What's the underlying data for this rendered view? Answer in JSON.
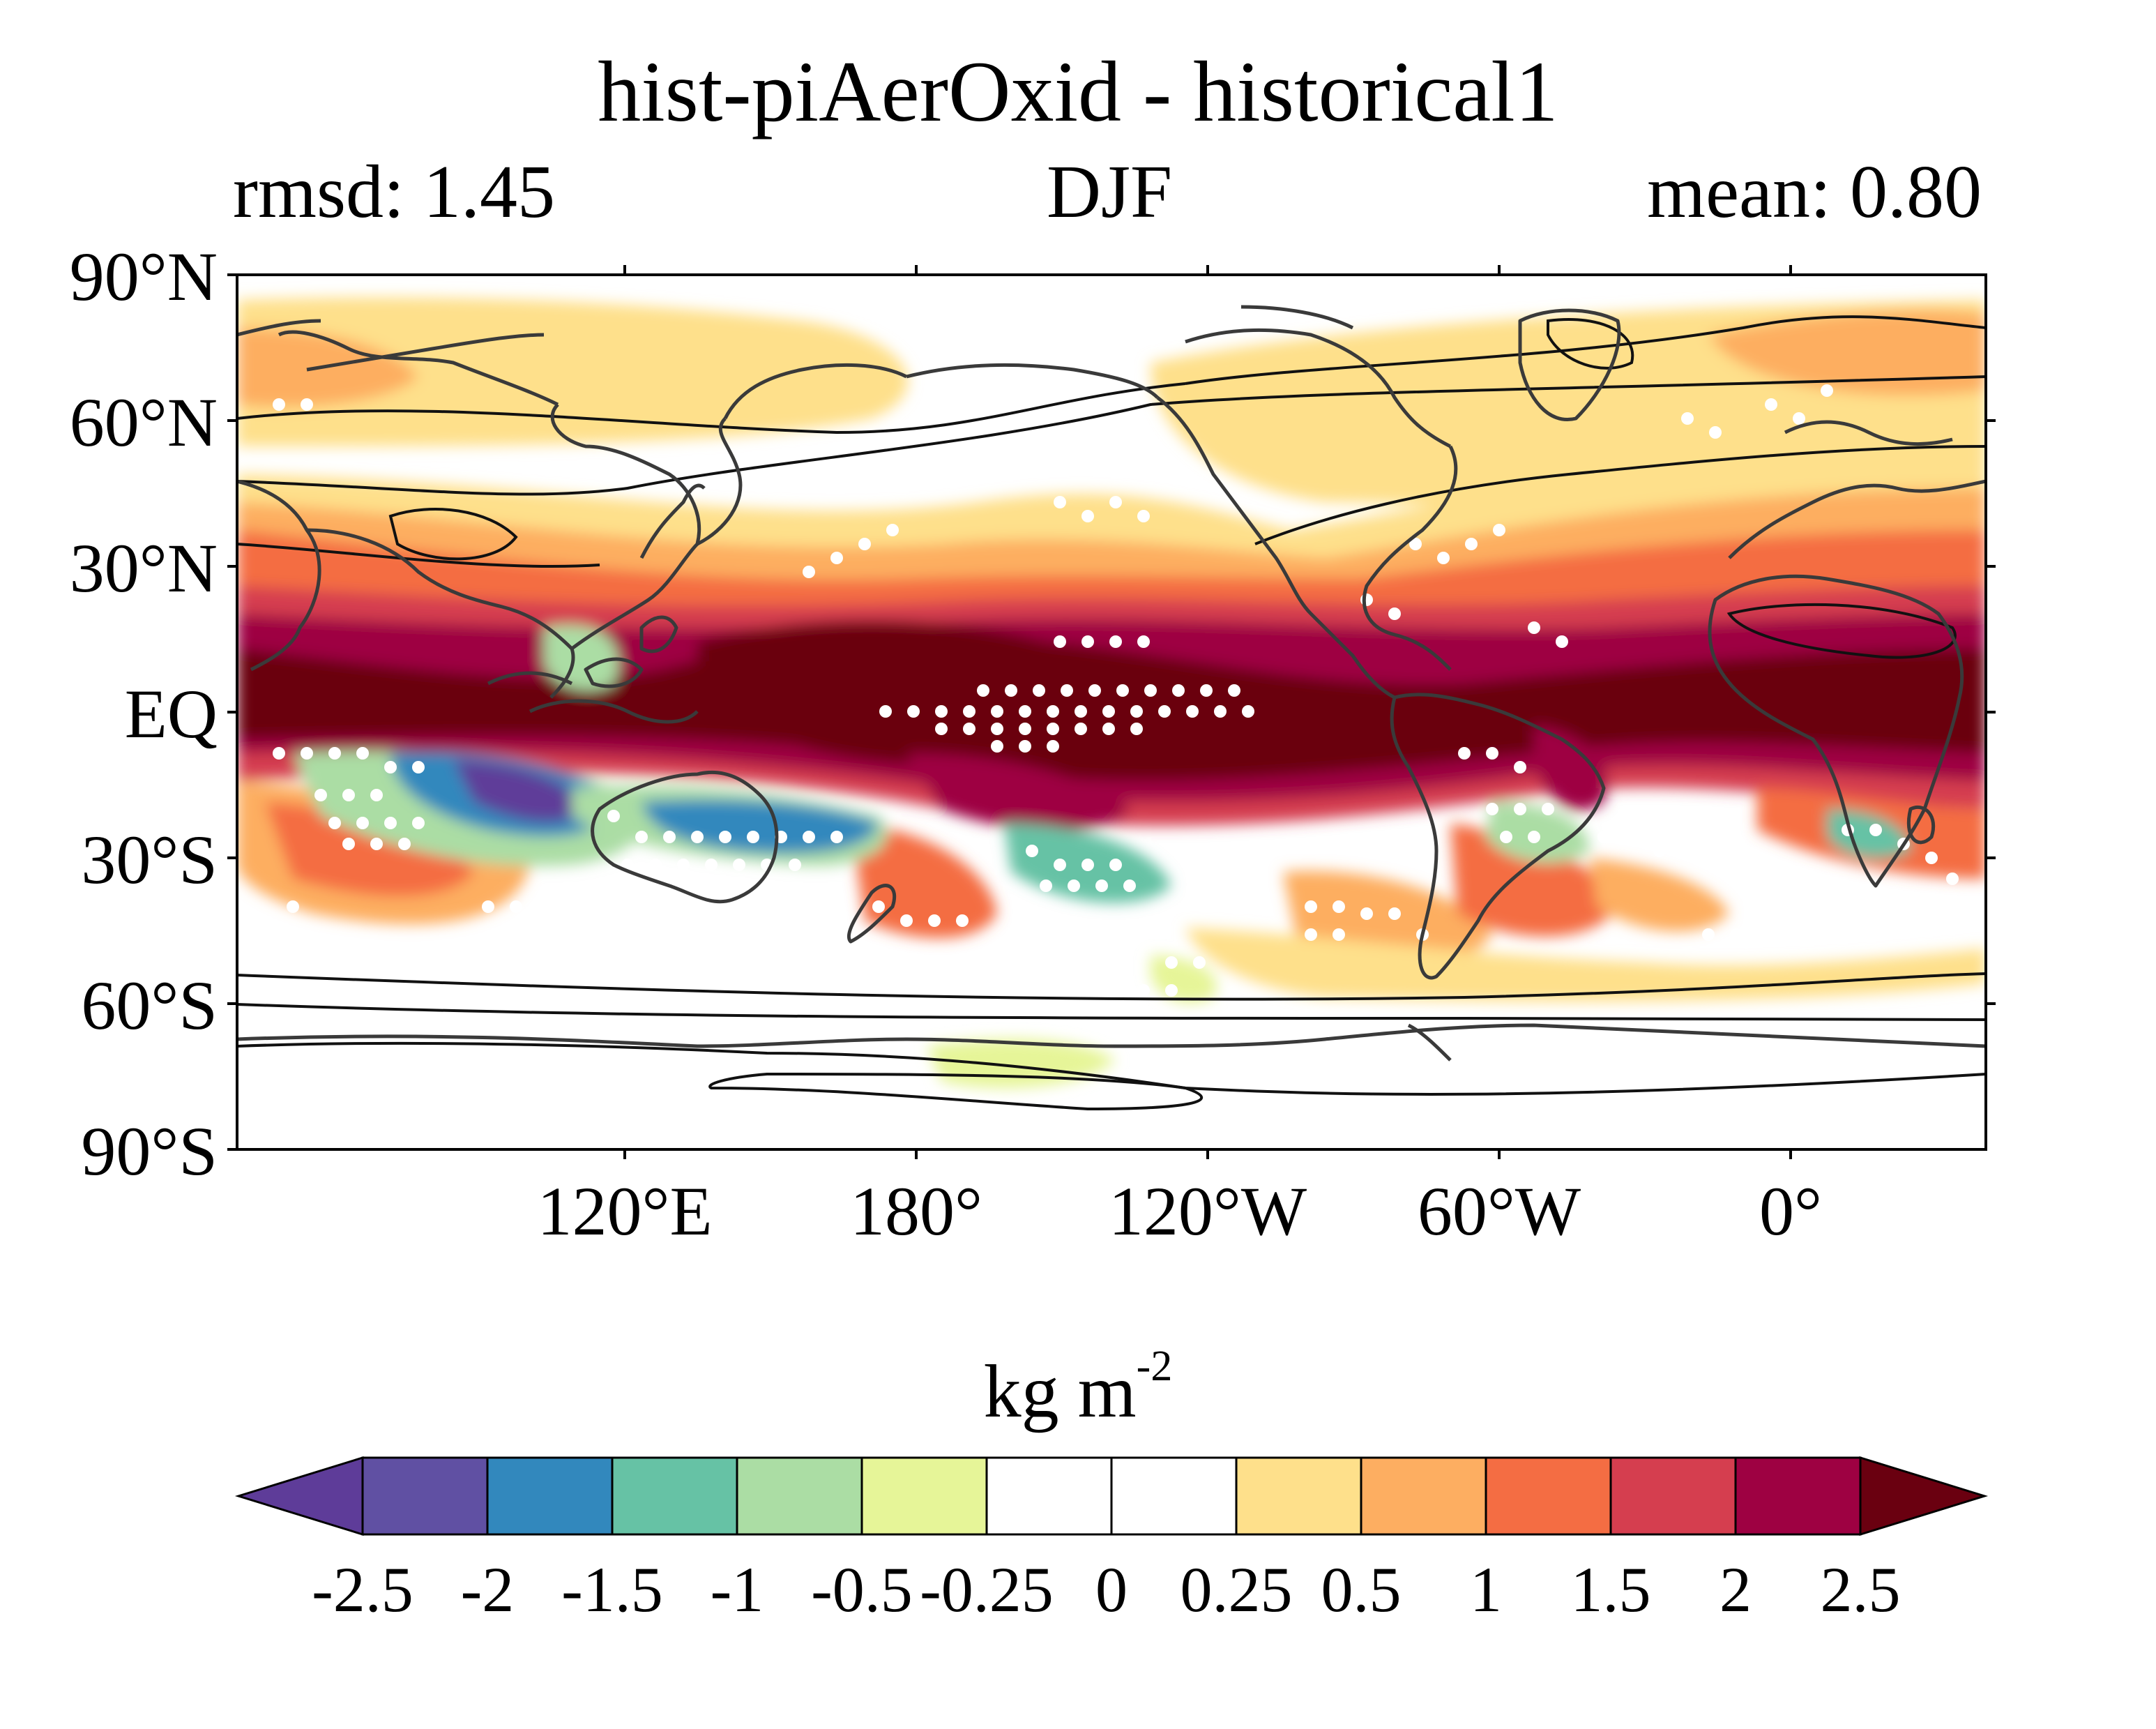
{
  "title": "hist-piAerOxid - historical1",
  "subtitle": {
    "left": "rmsd: 1.45",
    "center": "DJF",
    "right": "mean: 0.80"
  },
  "units": {
    "base": "kg m",
    "exponent": "-2"
  },
  "map": {
    "projection": "equirectangular",
    "central_longitude": "centered near 160°W",
    "lat_ticks": [
      "90°N",
      "60°N",
      "30°N",
      "EQ",
      "30°S",
      "60°S",
      "90°S"
    ],
    "lon_ticks": [
      "120°E",
      "180°",
      "120°W",
      "60°W",
      "0°"
    ],
    "coastlines": true,
    "stippling": "white dots mark significant regions",
    "black_contours": true
  },
  "colorbar": {
    "levels": [
      "-2.5",
      "-2",
      "-1.5",
      "-1",
      "-0.5",
      "-0.25",
      "0",
      "0.25",
      "0.5",
      "1",
      "1.5",
      "2",
      "2.5"
    ],
    "colors": [
      "#5e3c99",
      "#6050a3",
      "#3288bd",
      "#66c2a5",
      "#abdda4",
      "#e6f598",
      "#ffffff",
      "#ffffff",
      "#fee08b",
      "#fdae61",
      "#f46d43",
      "#d53e4f",
      "#9e0142",
      "#6a0010"
    ],
    "extend": "both"
  }
}
